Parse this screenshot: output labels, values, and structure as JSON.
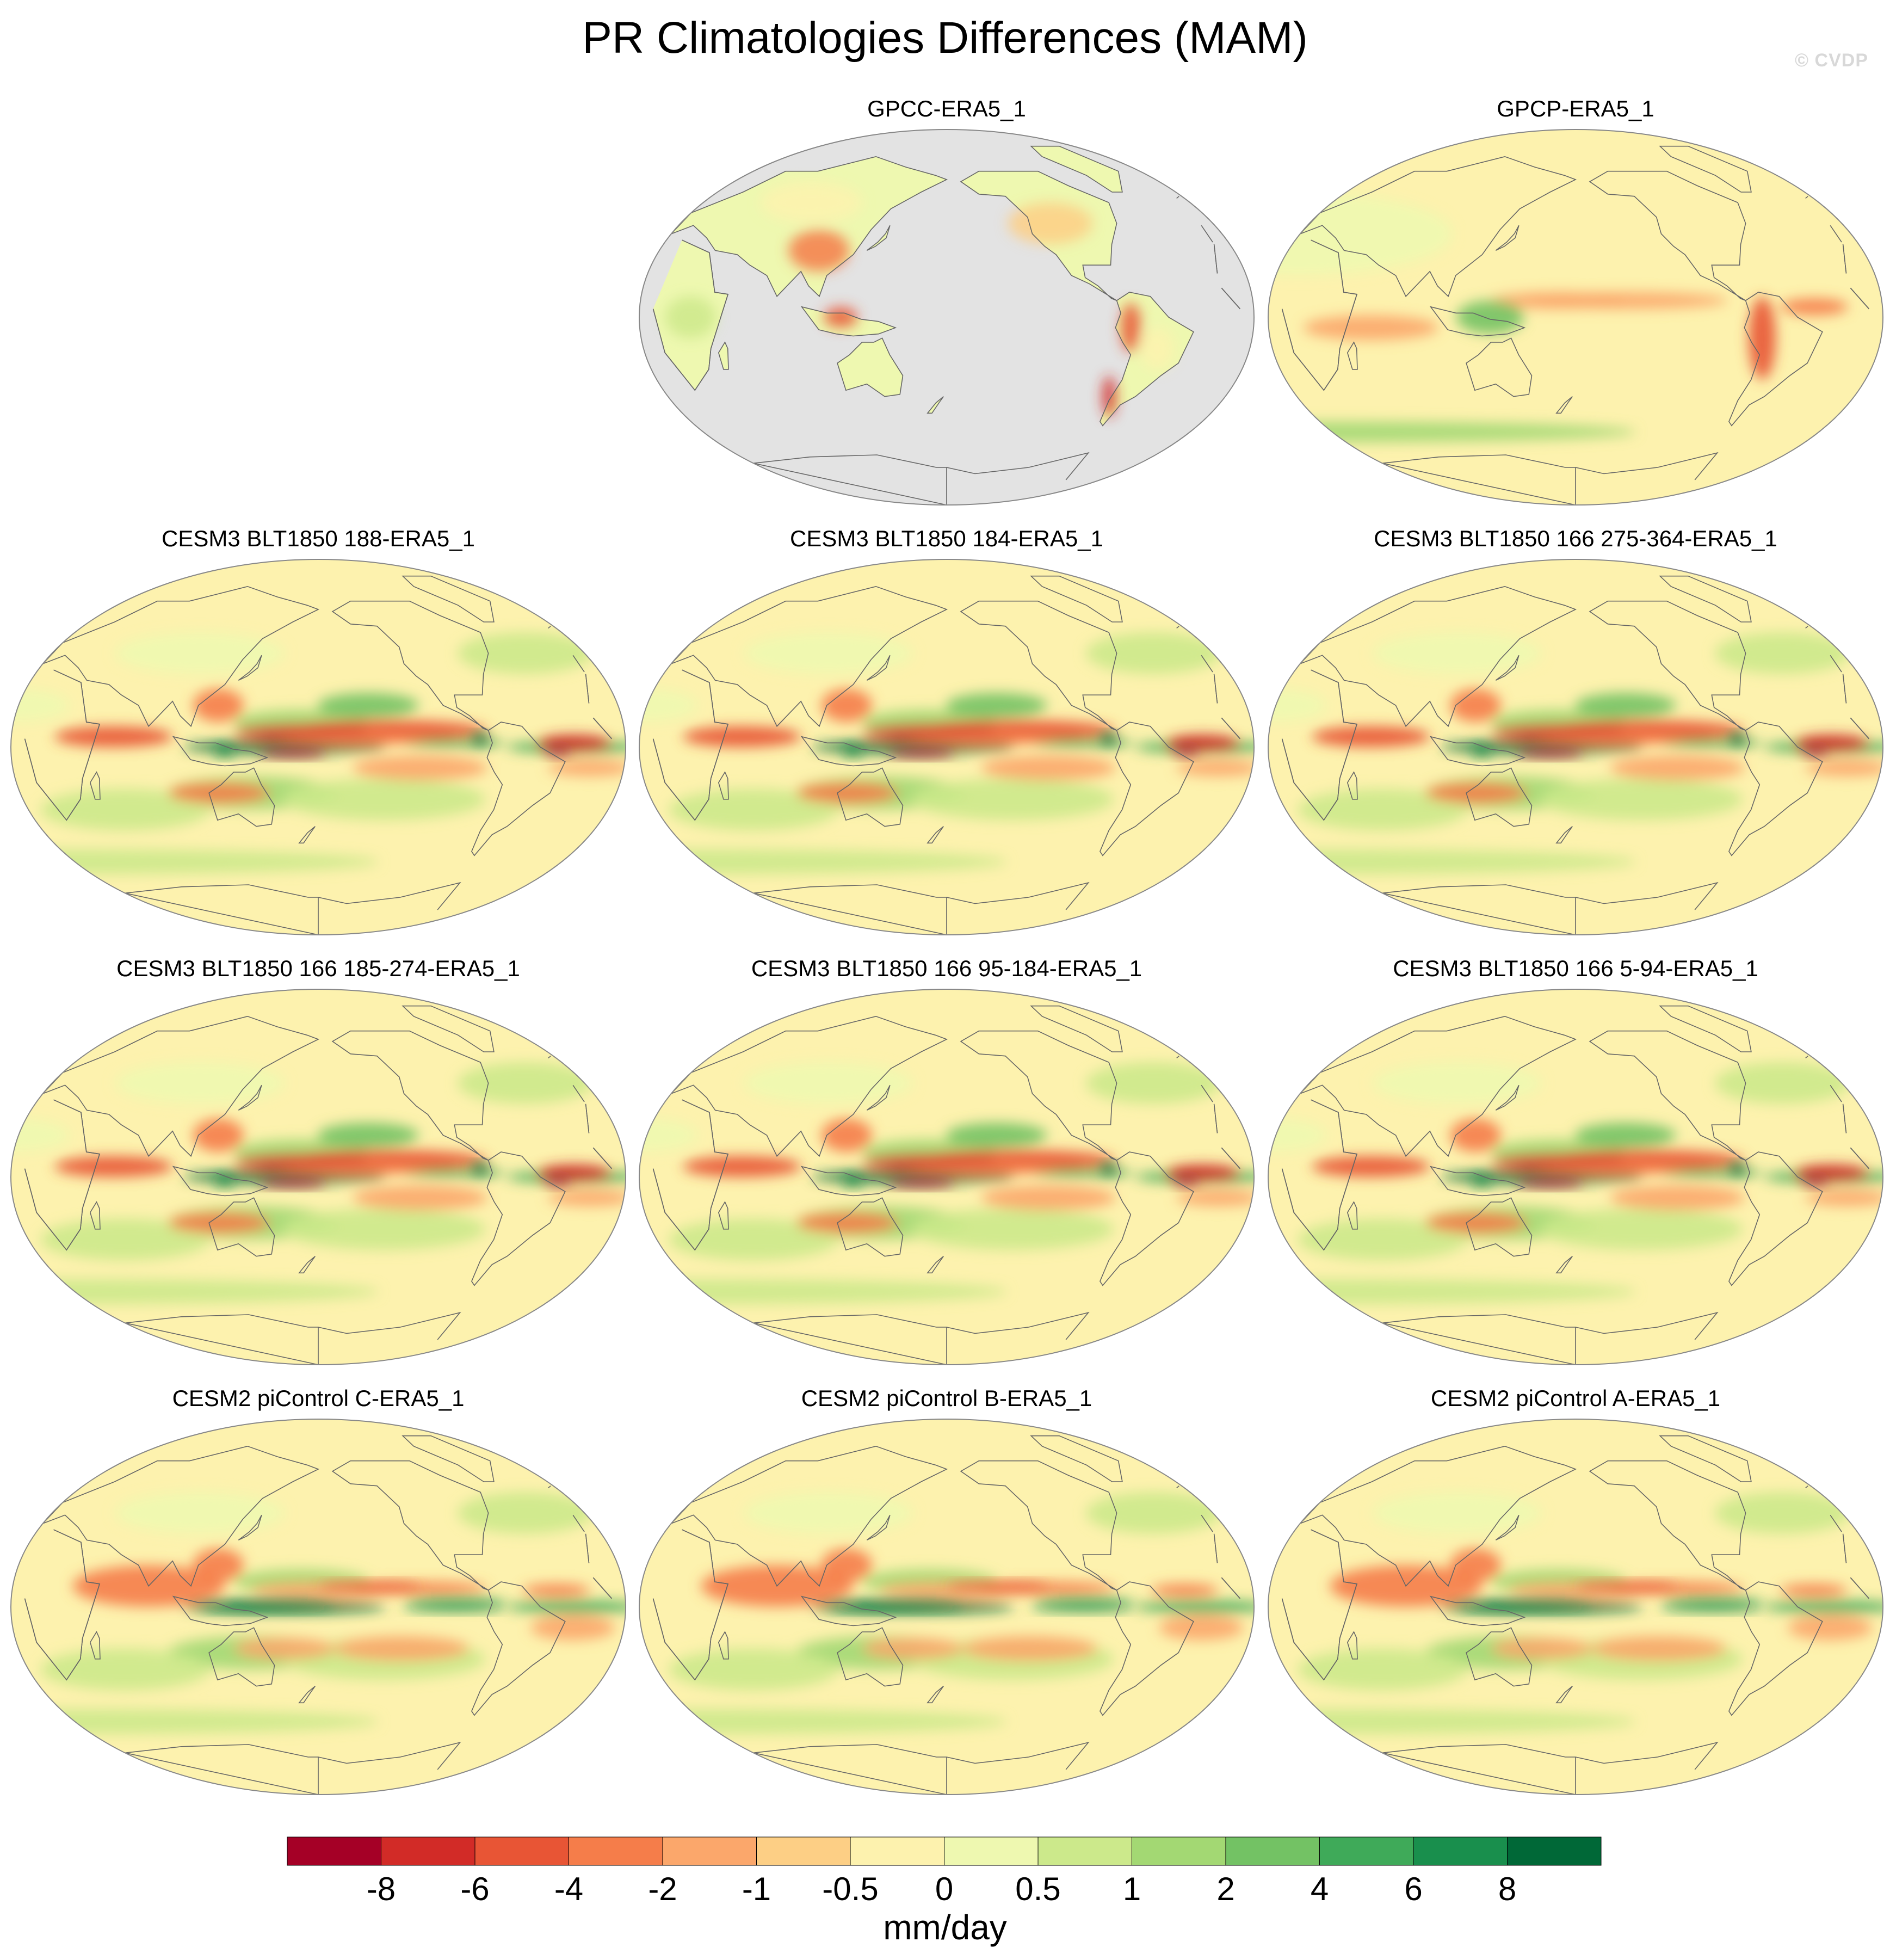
{
  "title": "PR Climatologies Differences (MAM)",
  "watermark": "© CVDP",
  "colors": {
    "ocean_missing": "#e3e3e3",
    "coast": "#666666",
    "border": "#888888"
  },
  "panels": [
    {
      "title": "GPCC-ERA5_1",
      "type": "land-only"
    },
    {
      "title": "GPCP-ERA5_1",
      "type": "gpcp"
    },
    {
      "title": "CESM3 BLT1850 188-ERA5_1",
      "type": "cesm3"
    },
    {
      "title": "CESM3 BLT1850 184-ERA5_1",
      "type": "cesm3"
    },
    {
      "title": "CESM3 BLT1850 166 275-364-ERA5_1",
      "type": "cesm3"
    },
    {
      "title": "CESM3 BLT1850 166 185-274-ERA5_1",
      "type": "cesm3"
    },
    {
      "title": "CESM3 BLT1850 166 95-184-ERA5_1",
      "type": "cesm3"
    },
    {
      "title": "CESM3 BLT1850 166 5-94-ERA5_1",
      "type": "cesm3"
    },
    {
      "title": "CESM2 piControl C-ERA5_1",
      "type": "cesm2"
    },
    {
      "title": "CESM2 piControl B-ERA5_1",
      "type": "cesm2"
    },
    {
      "title": "CESM2 piControl A-ERA5_1",
      "type": "cesm2"
    }
  ],
  "colorbar": {
    "unit": "mm/day",
    "labels": [
      "-8",
      "-6",
      "-4",
      "-2",
      "-1",
      "-0.5",
      "0",
      "0.5",
      "1",
      "2",
      "4",
      "6",
      "8"
    ],
    "colors": [
      "#a50026",
      "#d22b27",
      "#e85535",
      "#f57d4a",
      "#fba76b",
      "#fdcf85",
      "#fdf2ae",
      "#eef8b0",
      "#cce98b",
      "#a3d873",
      "#73c264",
      "#3faa59",
      "#198f4d",
      "#006837"
    ]
  }
}
